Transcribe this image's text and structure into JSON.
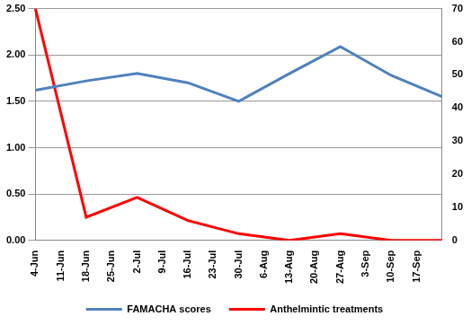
{
  "chart_data": {
    "type": "line",
    "categories": [
      "4-Jun",
      "11-Jun",
      "18-Jun",
      "25-Jun",
      "2-Jul",
      "9-Jul",
      "16-Jul",
      "23-Jul",
      "30-Jul",
      "6-Aug",
      "13-Aug",
      "20-Aug",
      "27-Aug",
      "3-Sep",
      "10-Sep",
      "17-Sep",
      null
    ],
    "series": [
      {
        "name": "FAMACHA scores",
        "color": "#4f81bd",
        "axis": "y",
        "values": [
          1.62,
          null,
          1.72,
          null,
          1.8,
          null,
          1.7,
          null,
          1.5,
          null,
          1.8,
          null,
          2.09,
          null,
          1.78,
          null,
          1.55
        ]
      },
      {
        "name": "Anthelmintic treatments",
        "color": "#ff0000",
        "axis": "y2",
        "values": [
          70,
          null,
          7,
          null,
          13,
          null,
          6,
          null,
          2,
          null,
          0,
          null,
          2,
          null,
          0,
          null,
          0
        ]
      }
    ],
    "ylim": [
      0,
      2.5
    ],
    "yticks": [
      {
        "value": 0,
        "label": "0.00"
      },
      {
        "value": 0.5,
        "label": "0.50"
      },
      {
        "value": 1,
        "label": "1.00"
      },
      {
        "value": 1.5,
        "label": "1.50"
      },
      {
        "value": 2,
        "label": "2.00"
      },
      {
        "value": 2.5,
        "label": "2.50"
      }
    ],
    "y2lim": [
      0,
      70
    ],
    "y2ticks": [
      0,
      10,
      20,
      30,
      40,
      50,
      60,
      70
    ],
    "grid": true,
    "legend": "bottom"
  }
}
